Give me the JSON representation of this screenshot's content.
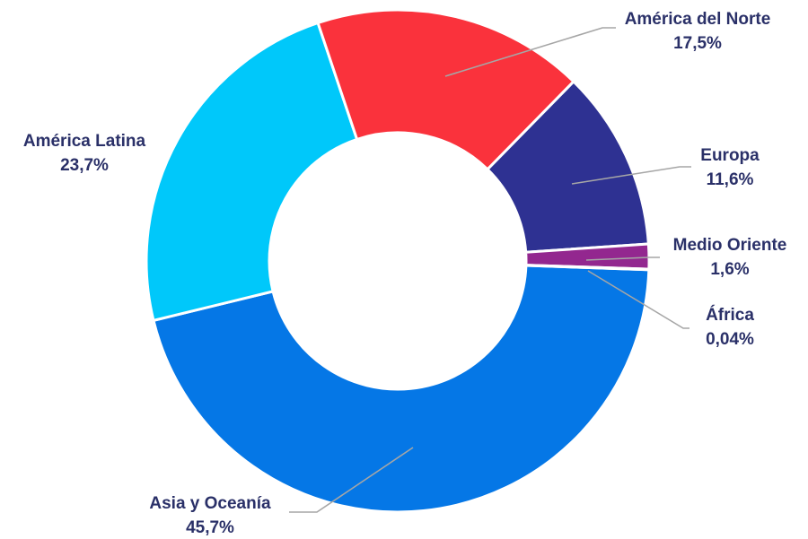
{
  "chart_data": {
    "type": "pie",
    "variant": "donut",
    "title": "",
    "categories": [
      "Asia y Oceanía",
      "América Latina",
      "América del Norte",
      "Europa",
      "Medio Oriente",
      "África"
    ],
    "values": [
      45.7,
      23.7,
      17.5,
      11.6,
      1.6,
      0.04
    ],
    "value_labels": [
      "45,7%",
      "23,7%",
      "17,5%",
      "11,6%",
      "1,6%",
      "0,04%"
    ],
    "colors": [
      "#0577e6",
      "#00c8fa",
      "#fa323c",
      "#2e3192",
      "#93278f",
      "#8b1a2e"
    ],
    "legend": "none",
    "label_color": "#2a3068",
    "leader_color": "#a6a6a6"
  }
}
